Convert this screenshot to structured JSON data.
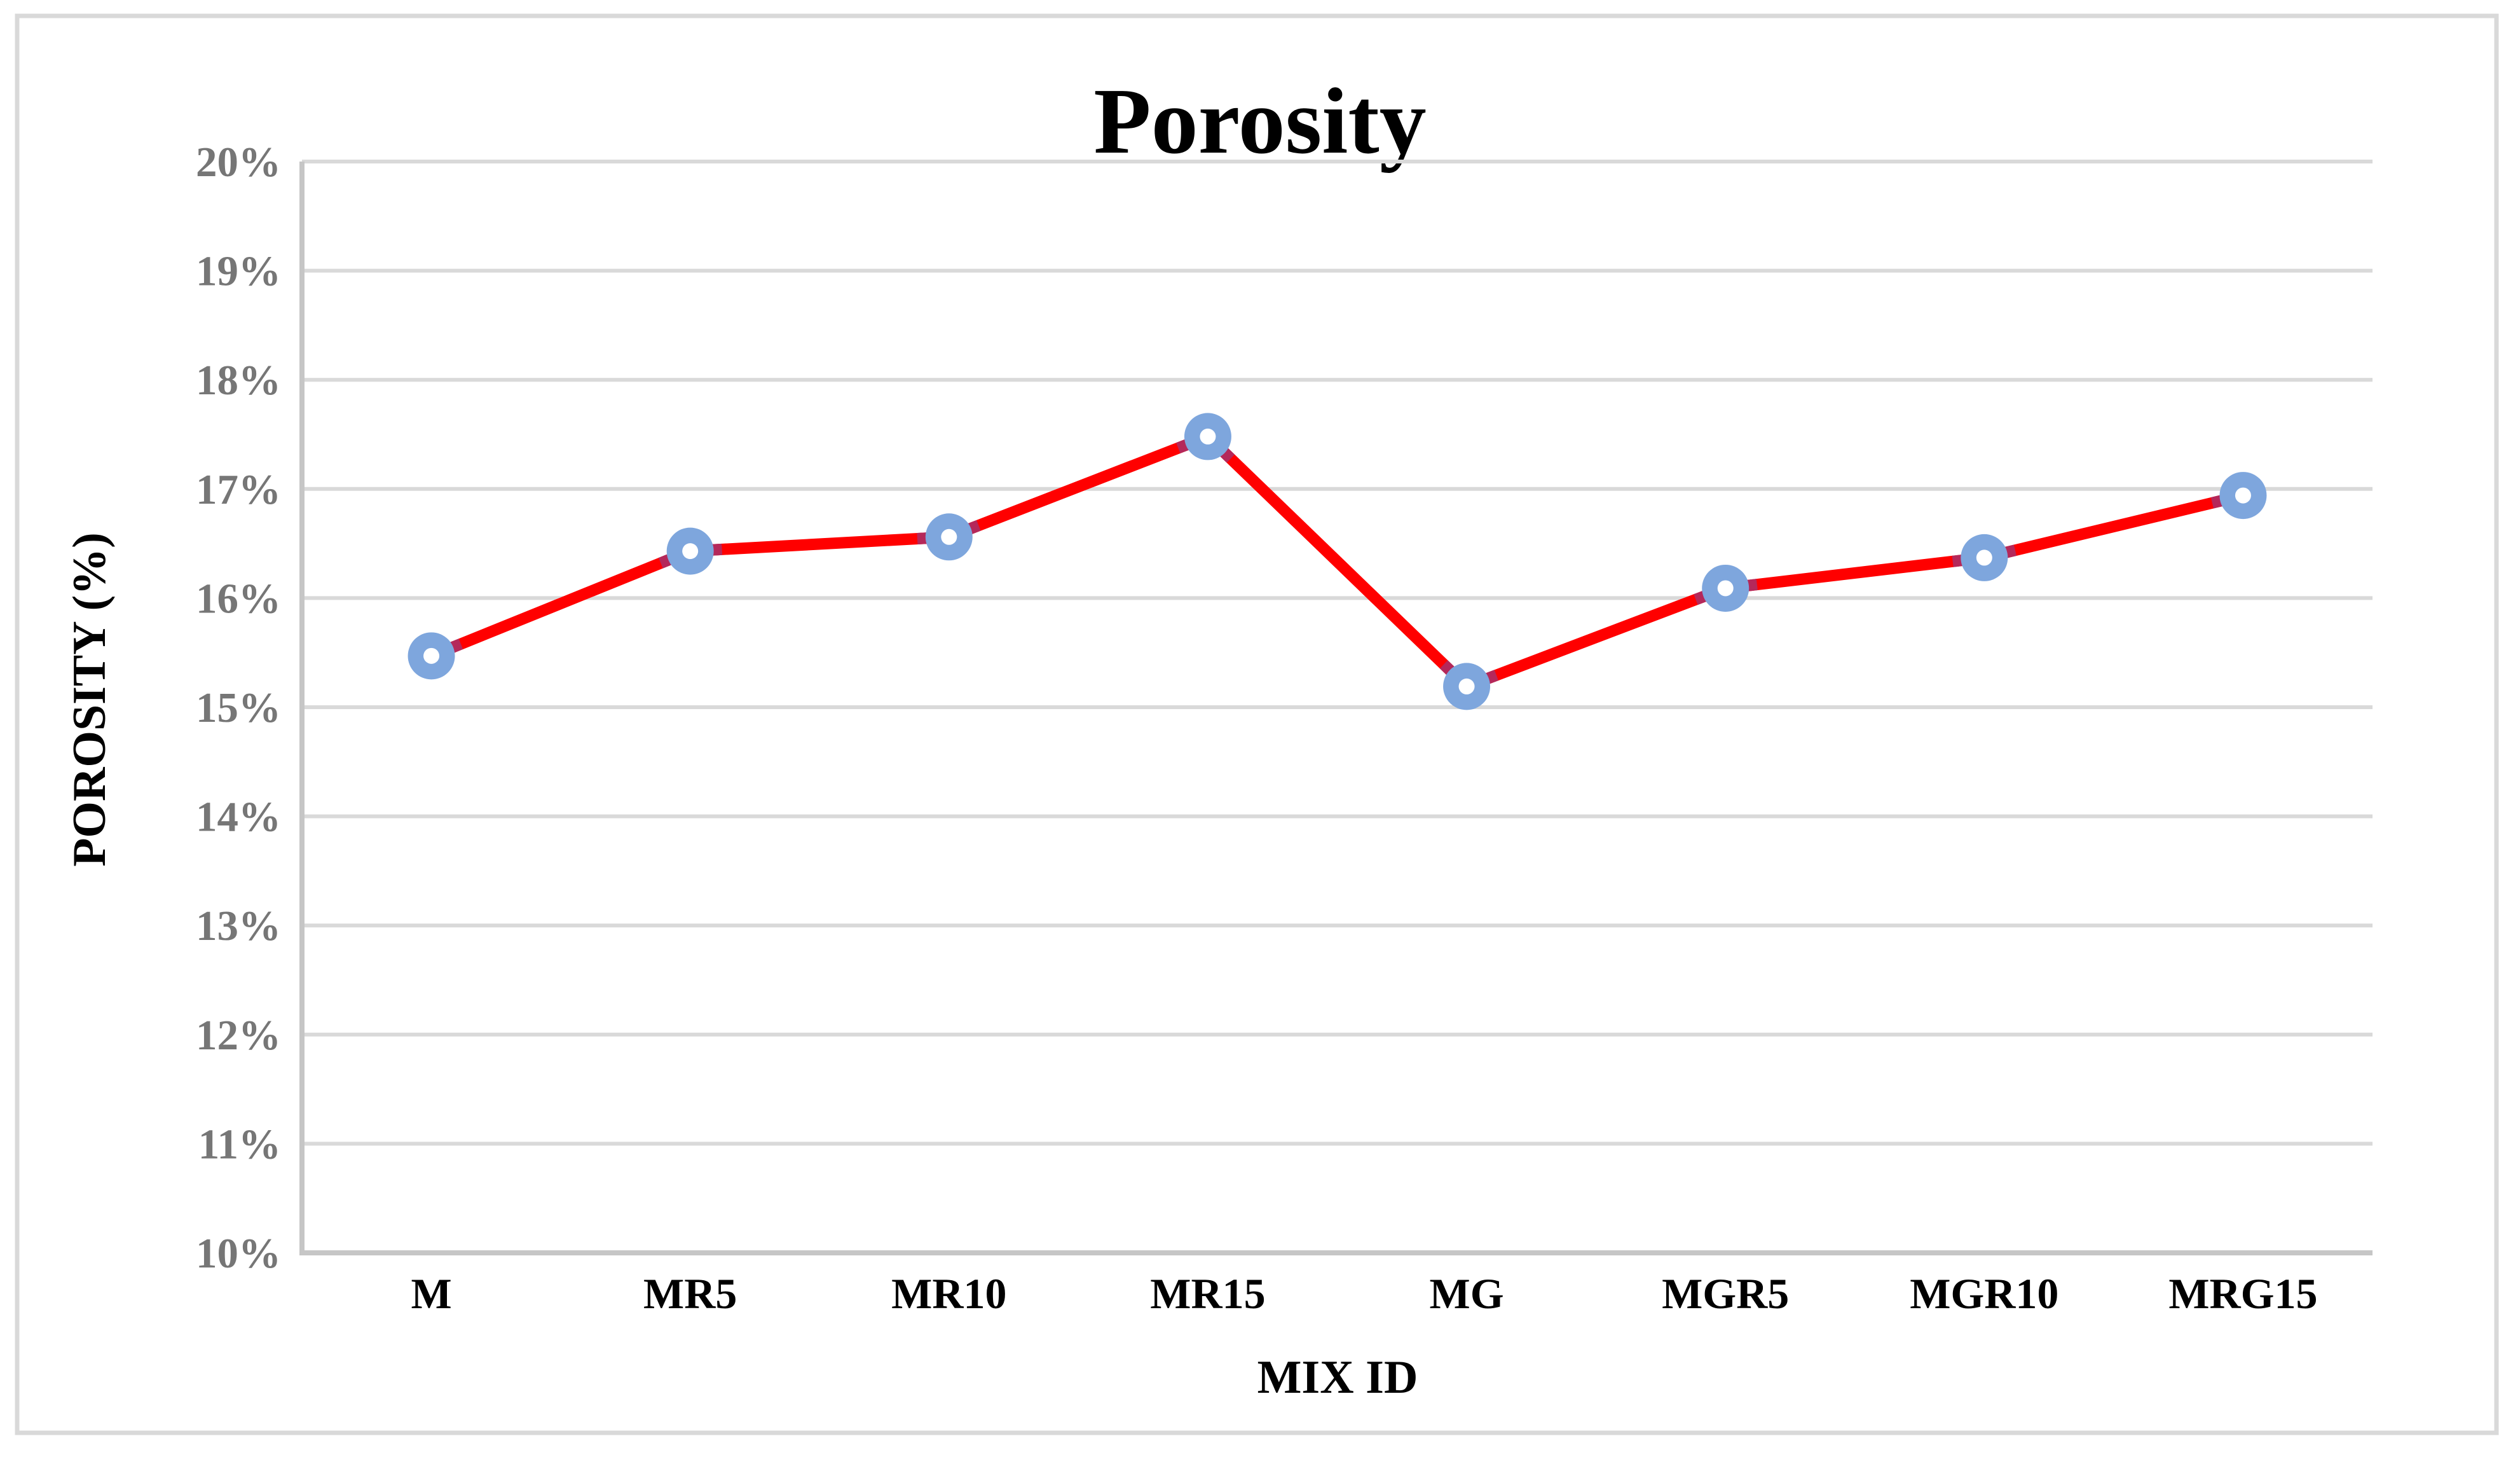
{
  "chart_data": {
    "type": "line",
    "title": "Porosity",
    "xlabel": "MIX ID",
    "ylabel": "POROSITY (%)",
    "categories": [
      "M",
      "MR5",
      "MR10",
      "MR15",
      "MG",
      "MGR5",
      "MGR10",
      "MRG15"
    ],
    "series": [
      {
        "name": "Porosity",
        "values": [
          15.47,
          16.43,
          16.56,
          17.48,
          15.19,
          16.09,
          16.37,
          16.94
        ]
      }
    ],
    "ylim": [
      10,
      20
    ],
    "ytick_step": 1,
    "ytick_labels": [
      "10%",
      "11%",
      "12%",
      "13%",
      "14%",
      "15%",
      "16%",
      "17%",
      "18%",
      "19%",
      "20%"
    ],
    "grid": "horizontal-only",
    "legend": "none",
    "marker_shape": "donut-circle",
    "colors": {
      "line": "#FF0000",
      "marker": "#7EA6DD",
      "marker_hole": "#FFFFFF",
      "junction": "#B4285A",
      "gridline": "#D9D9D9",
      "axis": "#C6C6C6",
      "tick_label": "#767676",
      "text": "#000000",
      "border": "#D9D9D9",
      "background": "#FFFFFF"
    }
  }
}
